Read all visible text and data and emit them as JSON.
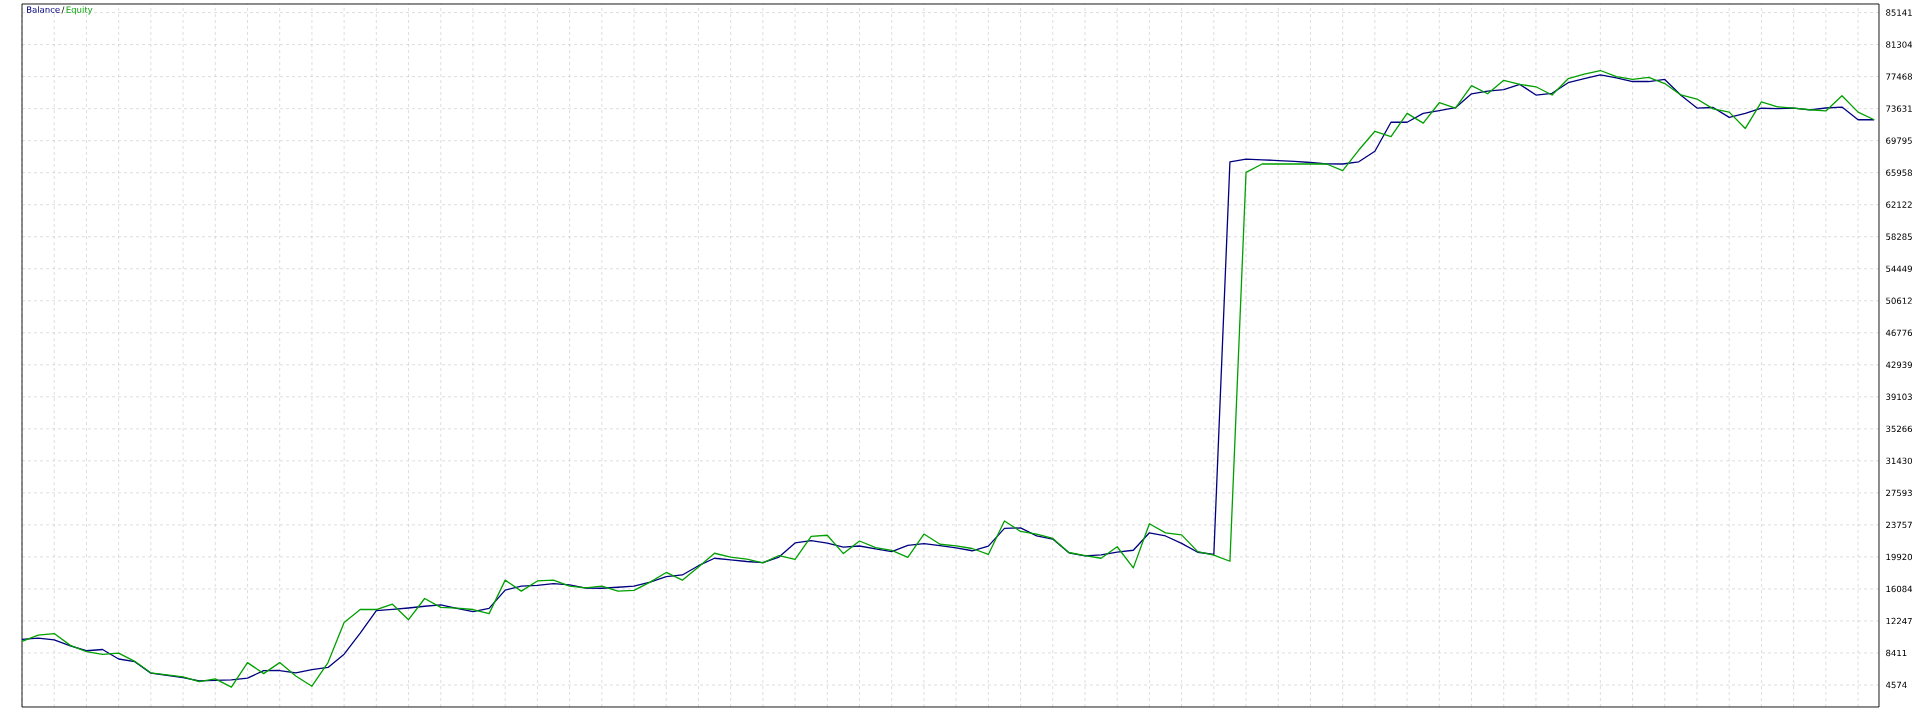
{
  "chart_data": {
    "type": "line",
    "categories": [
      null,
      null,
      null,
      null,
      null,
      null,
      null,
      null,
      null,
      null,
      null,
      null,
      null,
      null,
      null,
      null,
      null,
      null,
      null,
      null,
      null,
      null,
      null,
      null,
      null,
      null,
      null,
      null,
      null,
      null,
      null,
      null,
      null,
      null,
      null,
      null,
      null,
      null,
      null,
      null,
      null,
      null,
      null,
      null,
      null,
      null,
      null,
      null,
      null,
      null,
      null,
      null,
      null,
      null,
      null,
      null,
      null,
      null,
      null,
      null,
      null,
      null,
      null,
      null,
      null,
      null,
      null,
      null,
      null,
      null,
      null,
      null,
      null,
      null,
      null,
      null,
      null,
      null,
      null,
      null,
      null,
      null,
      null,
      null,
      null,
      null,
      null,
      null,
      null,
      null,
      null,
      null,
      null,
      null,
      null,
      null,
      null,
      null,
      null,
      null,
      null,
      null,
      null,
      null,
      null,
      null,
      null,
      null,
      null,
      null,
      null,
      null,
      null,
      null,
      null,
      null
    ],
    "ylim": [
      1940,
      86170
    ],
    "yticks": [
      4574,
      8411,
      12247,
      16084,
      19920,
      23757,
      27593,
      31430,
      35266,
      39103,
      42939,
      46776,
      50612,
      54449,
      58285,
      62122,
      65958,
      69795,
      73631,
      77468,
      81304,
      85141
    ],
    "tick_labels": "y",
    "grid": true,
    "annotations": [
      "/"
    ],
    "series": [
      {
        "name": "Balance",
        "color": "#000080",
        "values": [
          10050,
          10190,
          9990,
          9270,
          8680,
          8830,
          7690,
          7370,
          5990,
          5720,
          5450,
          5080,
          5120,
          5180,
          5390,
          6300,
          6310,
          6040,
          6420,
          6680,
          8270,
          10780,
          13490,
          13630,
          13800,
          14010,
          14180,
          13750,
          13370,
          13750,
          15950,
          16410,
          16500,
          16730,
          16570,
          16190,
          16170,
          16290,
          16420,
          16910,
          17550,
          17760,
          18870,
          19760,
          19570,
          19370,
          19230,
          19910,
          21600,
          21870,
          21580,
          21100,
          21230,
          20890,
          20550,
          21300,
          21510,
          21280,
          21010,
          20660,
          21210,
          23340,
          23400,
          22440,
          22060,
          20410,
          20050,
          20160,
          20490,
          20720,
          22810,
          22430,
          21540,
          20480,
          20220,
          67260,
          67590,
          67500,
          67410,
          67320,
          67180,
          67020,
          67000,
          67260,
          68530,
          72000,
          72000,
          73070,
          73390,
          73750,
          75410,
          75720,
          75900,
          76540,
          75260,
          75470,
          76740,
          77220,
          77680,
          77330,
          76880,
          76880,
          77130,
          75240,
          73700,
          73770,
          72590,
          73050,
          73680,
          73640,
          73690,
          73490,
          73710,
          73820,
          72300,
          72300
        ]
      },
      {
        "name": "Equity",
        "color": "#00a000",
        "values": [
          9810,
          10540,
          10740,
          9320,
          8580,
          8240,
          8400,
          7410,
          6040,
          5800,
          5550,
          4970,
          5310,
          4330,
          7260,
          5940,
          7260,
          5650,
          4430,
          7260,
          12060,
          13620,
          13620,
          14260,
          12400,
          14940,
          13870,
          13780,
          13620,
          13130,
          17140,
          15820,
          17040,
          17140,
          16430,
          16210,
          16410,
          15820,
          15920,
          16900,
          18060,
          17140,
          18710,
          20360,
          19900,
          19650,
          19200,
          20090,
          19630,
          22390,
          22520,
          20320,
          21830,
          21040,
          20700,
          19860,
          22660,
          21440,
          21250,
          20930,
          20220,
          24230,
          22970,
          22640,
          22130,
          20450,
          20080,
          19760,
          21140,
          18610,
          23900,
          22800,
          22560,
          20550,
          20140,
          19400,
          66000,
          67000,
          67000,
          67000,
          67000,
          67000,
          66200,
          68670,
          70920,
          70280,
          73070,
          71900,
          74340,
          73700,
          76390,
          75410,
          77030,
          76540,
          76250,
          75270,
          77220,
          77760,
          78200,
          77470,
          77130,
          77370,
          76640,
          75270,
          74780,
          73600,
          73210,
          71260,
          74440,
          73850,
          73700,
          73500,
          73360,
          75170,
          73210,
          72300
        ]
      }
    ]
  }
}
